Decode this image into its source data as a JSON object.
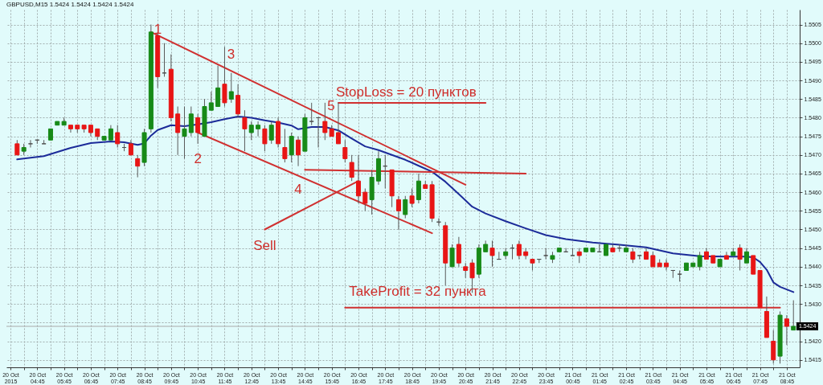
{
  "chart_data": {
    "type": "candlestick",
    "title": "GBPUSD,M15 1.5424 1.5424 1.5424 1.5424",
    "x": [
      "2015-10-20T04:00",
      "2015-10-20T04:15",
      "2015-10-20T04:30",
      "2015-10-20T04:45",
      "2015-10-20T05:00",
      "2015-10-20T05:15",
      "2015-10-20T05:30",
      "2015-10-20T05:45",
      "2015-10-20T06:00",
      "2015-10-20T06:15",
      "2015-10-20T06:30",
      "2015-10-20T06:45",
      "2015-10-20T07:00",
      "2015-10-20T07:15",
      "2015-10-20T07:30",
      "2015-10-20T07:45",
      "2015-10-20T08:00",
      "2015-10-20T08:15",
      "2015-10-20T08:30",
      "2015-10-20T08:45",
      "2015-10-20T09:00",
      "2015-10-20T09:15",
      "2015-10-20T09:30",
      "2015-10-20T09:45",
      "2015-10-20T10:00",
      "2015-10-20T10:15",
      "2015-10-20T10:30",
      "2015-10-20T10:45",
      "2015-10-20T11:00",
      "2015-10-20T11:15",
      "2015-10-20T11:30",
      "2015-10-20T11:45",
      "2015-10-20T12:00",
      "2015-10-20T12:15",
      "2015-10-20T12:30",
      "2015-10-20T12:45",
      "2015-10-20T13:00",
      "2015-10-20T13:15",
      "2015-10-20T13:30",
      "2015-10-20T13:45",
      "2015-10-20T14:00",
      "2015-10-20T14:15",
      "2015-10-20T14:30",
      "2015-10-20T14:45",
      "2015-10-20T15:00",
      "2015-10-20T15:15",
      "2015-10-20T15:30",
      "2015-10-20T15:45",
      "2015-10-20T16:00",
      "2015-10-20T16:15",
      "2015-10-20T16:30",
      "2015-10-20T16:45",
      "2015-10-20T17:00",
      "2015-10-20T17:15",
      "2015-10-20T17:30",
      "2015-10-20T17:45",
      "2015-10-20T18:00",
      "2015-10-20T18:15",
      "2015-10-20T18:30",
      "2015-10-20T18:45",
      "2015-10-20T19:00",
      "2015-10-20T19:15",
      "2015-10-20T19:30",
      "2015-10-20T19:45",
      "2015-10-20T20:00",
      "2015-10-20T20:15",
      "2015-10-20T20:30",
      "2015-10-20T20:45",
      "2015-10-20T21:00",
      "2015-10-20T21:15",
      "2015-10-20T21:30",
      "2015-10-20T21:45",
      "2015-10-20T22:00",
      "2015-10-20T22:15",
      "2015-10-20T22:30",
      "2015-10-20T22:45",
      "2015-10-20T23:00",
      "2015-10-20T23:15",
      "2015-10-20T23:30",
      "2015-10-20T23:45",
      "2015-10-21T00:00",
      "2015-10-21T00:15",
      "2015-10-21T00:30",
      "2015-10-21T00:45",
      "2015-10-21T01:00",
      "2015-10-21T01:15",
      "2015-10-21T01:30",
      "2015-10-21T01:45",
      "2015-10-21T02:00",
      "2015-10-21T02:15",
      "2015-10-21T02:30",
      "2015-10-21T02:45",
      "2015-10-21T03:00",
      "2015-10-21T03:15",
      "2015-10-21T03:30",
      "2015-10-21T03:45",
      "2015-10-21T04:00",
      "2015-10-21T04:15",
      "2015-10-21T04:30",
      "2015-10-21T04:45",
      "2015-10-21T05:00",
      "2015-10-21T05:15",
      "2015-10-21T05:30",
      "2015-10-21T05:45",
      "2015-10-21T06:00",
      "2015-10-21T06:15",
      "2015-10-21T06:30",
      "2015-10-21T06:45",
      "2015-10-21T07:00",
      "2015-10-21T07:15",
      "2015-10-21T07:30",
      "2015-10-21T07:45",
      "2015-10-21T08:00",
      "2015-10-21T08:15",
      "2015-10-21T08:30",
      "2015-10-21T08:45",
      "2015-10-21T09:00"
    ],
    "ohlc": [
      [
        1.5473,
        1.5474,
        1.547,
        1.547
      ],
      [
        1.5471,
        1.5473,
        1.547,
        1.5472
      ],
      [
        1.5473,
        1.5474,
        1.5472,
        1.5473
      ],
      [
        1.5474,
        1.5474,
        1.5473,
        1.5474
      ],
      [
        1.5473,
        1.5474,
        1.5473,
        1.5473
      ],
      [
        1.5474,
        1.5477,
        1.5474,
        1.5477
      ],
      [
        1.5478,
        1.5479,
        1.5478,
        1.5479
      ],
      [
        1.5478,
        1.548,
        1.5478,
        1.5479
      ],
      [
        1.5478,
        1.5478,
        1.5476,
        1.5477
      ],
      [
        1.5478,
        1.5478,
        1.5476,
        1.5477
      ],
      [
        1.5478,
        1.5478,
        1.5476,
        1.5477
      ],
      [
        1.5478,
        1.5478,
        1.5475,
        1.5476
      ],
      [
        1.5477,
        1.5477,
        1.5474,
        1.5475
      ],
      [
        1.5474,
        1.5475,
        1.5474,
        1.5475
      ],
      [
        1.5474,
        1.5478,
        1.5474,
        1.5477
      ],
      [
        1.5476,
        1.5478,
        1.5472,
        1.5473
      ],
      [
        1.5472,
        1.5473,
        1.5471,
        1.5472
      ],
      [
        1.5473,
        1.5474,
        1.547,
        1.547
      ],
      [
        1.5469,
        1.547,
        1.5464,
        1.5467
      ],
      [
        1.5468,
        1.5477,
        1.5467,
        1.5476
      ],
      [
        1.5477,
        1.5505,
        1.5476,
        1.5503
      ],
      [
        1.5502,
        1.5503,
        1.5488,
        1.5491
      ],
      [
        1.5492,
        1.55,
        1.5491,
        1.5492
      ],
      [
        1.5493,
        1.5497,
        1.5479,
        1.548
      ],
      [
        1.5481,
        1.5483,
        1.547,
        1.5476
      ],
      [
        1.5475,
        1.5483,
        1.5469,
        1.5477
      ],
      [
        1.5476,
        1.5483,
        1.5475,
        1.5481
      ],
      [
        1.548,
        1.5481,
        1.5473,
        1.5476
      ],
      [
        1.5475,
        1.5485,
        1.5475,
        1.5483
      ],
      [
        1.5482,
        1.5487,
        1.5482,
        1.5484
      ],
      [
        1.5483,
        1.5494,
        1.5483,
        1.5488
      ],
      [
        1.5489,
        1.5499,
        1.5483,
        1.5484
      ],
      [
        1.5485,
        1.5492,
        1.5484,
        1.5487
      ],
      [
        1.5486,
        1.5489,
        1.548,
        1.5481
      ],
      [
        1.548,
        1.5482,
        1.5471,
        1.5477
      ],
      [
        1.5476,
        1.5479,
        1.5474,
        1.5478
      ],
      [
        1.5477,
        1.5479,
        1.5475,
        1.5478
      ],
      [
        1.5477,
        1.5478,
        1.5471,
        1.5473
      ],
      [
        1.5474,
        1.5479,
        1.5473,
        1.5478
      ],
      [
        1.5479,
        1.548,
        1.5472,
        1.5473
      ],
      [
        1.5472,
        1.5477,
        1.5468,
        1.5469
      ],
      [
        1.547,
        1.5476,
        1.5468,
        1.5475
      ],
      [
        1.5474,
        1.5475,
        1.5467,
        1.547
      ],
      [
        1.5471,
        1.5481,
        1.5471,
        1.548
      ],
      [
        1.5479,
        1.5484,
        1.5478,
        1.5479
      ],
      [
        1.548,
        1.548,
        1.5472,
        1.548
      ],
      [
        1.5479,
        1.5484,
        1.5474,
        1.5476
      ],
      [
        1.5477,
        1.5478,
        1.5475,
        1.5475
      ],
      [
        1.5476,
        1.5484,
        1.5473,
        1.5473
      ],
      [
        1.5472,
        1.5474,
        1.5468,
        1.5469
      ],
      [
        1.5468,
        1.547,
        1.5463,
        1.5464
      ],
      [
        1.5463,
        1.547,
        1.5457,
        1.5459
      ],
      [
        1.546,
        1.5461,
        1.5455,
        1.5457
      ],
      [
        1.5458,
        1.5466,
        1.5454,
        1.5464
      ],
      [
        1.5463,
        1.5471,
        1.5462,
        1.5469
      ],
      [
        1.5467,
        1.547,
        1.5461,
        1.5467
      ],
      [
        1.5466,
        1.5466,
        1.5456,
        1.5459
      ],
      [
        1.5458,
        1.5459,
        1.545,
        1.5455
      ],
      [
        1.5454,
        1.5459,
        1.5453,
        1.5458
      ],
      [
        1.5459,
        1.5461,
        1.5456,
        1.5457
      ],
      [
        1.5458,
        1.5465,
        1.5457,
        1.5463
      ],
      [
        1.5462,
        1.5463,
        1.5461,
        1.5461
      ],
      [
        1.5462,
        1.5463,
        1.5452,
        1.5453
      ],
      [
        1.5452,
        1.5453,
        1.5451,
        1.5452
      ],
      [
        1.5451,
        1.5452,
        1.5435,
        1.5441
      ],
      [
        1.544,
        1.5446,
        1.544,
        1.5445
      ],
      [
        1.5446,
        1.5448,
        1.544,
        1.5441
      ],
      [
        1.544,
        1.5441,
        1.5437,
        1.5439
      ],
      [
        1.5441,
        1.5442,
        1.5433,
        1.5437
      ],
      [
        1.5438,
        1.5446,
        1.5437,
        1.5445
      ],
      [
        1.5444,
        1.5447,
        1.5444,
        1.5446
      ],
      [
        1.5445,
        1.5447,
        1.544,
        1.5443
      ],
      [
        1.5442,
        1.5444,
        1.5442,
        1.5442
      ],
      [
        1.5443,
        1.5445,
        1.5442,
        1.5444
      ],
      [
        1.5445,
        1.5446,
        1.5442,
        1.5445
      ],
      [
        1.5446,
        1.5447,
        1.5442,
        1.5443
      ],
      [
        1.5444,
        1.5445,
        1.5442,
        1.5443
      ],
      [
        1.5442,
        1.5442,
        1.5439,
        1.5441
      ],
      [
        1.5442,
        1.5442,
        1.5441,
        1.5442
      ],
      [
        1.5443,
        1.5445,
        1.5442,
        1.5443
      ],
      [
        1.5442,
        1.5444,
        1.5441,
        1.5443
      ],
      [
        1.5444,
        1.5445,
        1.5444,
        1.5445
      ],
      [
        1.5444,
        1.5445,
        1.5444,
        1.5444
      ],
      [
        1.5443,
        1.5445,
        1.5443,
        1.5443
      ],
      [
        1.5444,
        1.5445,
        1.5441,
        1.5443
      ],
      [
        1.5444,
        1.5445,
        1.5444,
        1.5445
      ],
      [
        1.5444,
        1.5445,
        1.5444,
        1.5445
      ],
      [
        1.5444,
        1.5446,
        1.5444,
        1.5444
      ],
      [
        1.5443,
        1.5446,
        1.5443,
        1.5446
      ],
      [
        1.5445,
        1.5446,
        1.5444,
        1.5444
      ],
      [
        1.5445,
        1.5446,
        1.5444,
        1.5445
      ],
      [
        1.5444,
        1.5446,
        1.5444,
        1.5445
      ],
      [
        1.5444,
        1.5445,
        1.5441,
        1.5442
      ],
      [
        1.5443,
        1.5443,
        1.5442,
        1.5443
      ],
      [
        1.5444,
        1.5445,
        1.5442,
        1.5442
      ],
      [
        1.5443,
        1.5444,
        1.544,
        1.544
      ],
      [
        1.5441,
        1.5442,
        1.544,
        1.544
      ],
      [
        1.5441,
        1.5442,
        1.5439,
        1.544
      ],
      [
        1.5439,
        1.5439,
        1.5437,
        1.5439
      ],
      [
        1.5438,
        1.5439,
        1.5436,
        1.5438
      ],
      [
        1.5439,
        1.5441,
        1.5439,
        1.5441
      ],
      [
        1.544,
        1.5441,
        1.544,
        1.5441
      ],
      [
        1.544,
        1.5444,
        1.5439,
        1.5443
      ],
      [
        1.5444,
        1.5445,
        1.5442,
        1.5442
      ],
      [
        1.5443,
        1.5443,
        1.5441,
        1.5441
      ],
      [
        1.544,
        1.5442,
        1.544,
        1.5442
      ],
      [
        1.5443,
        1.5444,
        1.5442,
        1.5442
      ],
      [
        1.5443,
        1.5445,
        1.5443,
        1.5444
      ],
      [
        1.5445,
        1.5446,
        1.5439,
        1.5442
      ],
      [
        1.5441,
        1.5445,
        1.5441,
        1.5444
      ],
      [
        1.5443,
        1.5443,
        1.5438,
        1.5438
      ],
      [
        1.5439,
        1.5439,
        1.5429,
        1.5429
      ],
      [
        1.5428,
        1.5432,
        1.5421,
        1.5421
      ],
      [
        1.542,
        1.5423,
        1.5414,
        1.5415
      ],
      [
        1.5416,
        1.5428,
        1.5414,
        1.5427
      ],
      [
        1.5426,
        1.5427,
        1.5419,
        1.5424
      ],
      [
        1.5423,
        1.5431,
        1.5423,
        1.5424
      ]
    ],
    "colors": [
      "#e81515",
      "#178a17",
      "#4d4d4d",
      "#4d4d4d",
      "#4d4d4d",
      "#178a17",
      "#178a17",
      "#178a17",
      "#e81515",
      "#e81515",
      "#e81515",
      "#e81515",
      "#e81515",
      "#178a17",
      "#178a17",
      "#e81515",
      "#4d4d4d",
      "#e81515",
      "#e81515",
      "#178a17",
      "#178a17",
      "#e81515",
      "#4d4d4d",
      "#e81515",
      "#e81515",
      "#178a17",
      "#178a17",
      "#e81515",
      "#178a17",
      "#178a17",
      "#178a17",
      "#e81515",
      "#178a17",
      "#e81515",
      "#e81515",
      "#178a17",
      "#178a17",
      "#e81515",
      "#178a17",
      "#e81515",
      "#e81515",
      "#178a17",
      "#e81515",
      "#178a17",
      "#4d4d4d",
      "#4d4d4d",
      "#e81515",
      "#e81515",
      "#e81515",
      "#e81515",
      "#e81515",
      "#e81515",
      "#e81515",
      "#178a17",
      "#178a17",
      "#4d4d4d",
      "#e81515",
      "#e81515",
      "#178a17",
      "#e81515",
      "#178a17",
      "#e81515",
      "#e81515",
      "#4d4d4d",
      "#e81515",
      "#178a17",
      "#e81515",
      "#e81515",
      "#e81515",
      "#178a17",
      "#178a17",
      "#e81515",
      "#4d4d4d",
      "#178a17",
      "#4d4d4d",
      "#e81515",
      "#e81515",
      "#e81515",
      "#4d4d4d",
      "#4d4d4d",
      "#178a17",
      "#178a17",
      "#4d4d4d",
      "#4d4d4d",
      "#e81515",
      "#178a17",
      "#178a17",
      "#4d4d4d",
      "#178a17",
      "#e81515",
      "#4d4d4d",
      "#178a17",
      "#e81515",
      "#4d4d4d",
      "#e81515",
      "#e81515",
      "#e81515",
      "#e81515",
      "#4d4d4d",
      "#4d4d4d",
      "#178a17",
      "#178a17",
      "#178a17",
      "#e81515",
      "#e81515",
      "#178a17",
      "#e81515",
      "#178a17",
      "#e81515",
      "#178a17",
      "#e81515",
      "#e81515",
      "#e81515",
      "#e81515",
      "#178a17",
      "#e81515",
      "#178a17"
    ],
    "series": [
      {
        "type": "line",
        "color": "#1c2b99",
        "x": [
          "2015-10-20T04:00",
          "2015-10-20T05:00",
          "2015-10-20T06:00",
          "2015-10-20T06:45",
          "2015-10-20T07:30",
          "2015-10-20T08:00",
          "2015-10-20T08:30",
          "2015-10-20T08:45",
          "2015-10-20T09:00",
          "2015-10-20T09:15",
          "2015-10-20T09:45",
          "2015-10-20T10:15",
          "2015-10-20T10:45",
          "2015-10-20T11:15",
          "2015-10-20T11:45",
          "2015-10-20T12:15",
          "2015-10-20T12:45",
          "2015-10-20T13:15",
          "2015-10-20T13:45",
          "2015-10-20T14:15",
          "2015-10-20T14:30",
          "2015-10-20T15:00",
          "2015-10-20T15:30",
          "2015-10-20T16:00",
          "2015-10-20T16:30",
          "2015-10-20T17:00",
          "2015-10-20T17:30",
          "2015-10-20T18:00",
          "2015-10-20T18:30",
          "2015-10-20T19:00",
          "2015-10-20T19:30",
          "2015-10-20T20:00",
          "2015-10-20T20:30",
          "2015-10-20T21:00",
          "2015-10-20T21:30",
          "2015-10-20T22:15",
          "2015-10-20T23:00",
          "2015-10-20T23:45",
          "2015-10-21T00:30",
          "2015-10-21T01:30",
          "2015-10-21T02:30",
          "2015-10-21T03:30",
          "2015-10-21T04:30",
          "2015-10-21T05:30",
          "2015-10-21T06:30",
          "2015-10-21T07:15",
          "2015-10-21T07:30",
          "2015-10-21T07:45",
          "2015-10-21T08:00",
          "2015-10-21T08:15",
          "2015-10-21T08:30",
          "2015-10-21T09:00"
        ],
        "values": [
          1.54688,
          1.54697,
          1.54719,
          1.54732,
          1.54736,
          1.54734,
          1.54727,
          1.54731,
          1.54752,
          1.54767,
          1.5478,
          1.54777,
          1.54782,
          1.54788,
          1.54796,
          1.54803,
          1.548,
          1.54793,
          1.54787,
          1.54779,
          1.54769,
          1.54775,
          1.54775,
          1.54766,
          1.54744,
          1.54723,
          1.54713,
          1.547,
          1.54687,
          1.54671,
          1.54655,
          1.54628,
          1.54595,
          1.54561,
          1.54543,
          1.54522,
          1.54503,
          1.54485,
          1.54474,
          1.54465,
          1.54459,
          1.54452,
          1.54436,
          1.54428,
          1.54427,
          1.54427,
          1.54425,
          1.54413,
          1.54392,
          1.54358,
          1.54346,
          1.54332
        ]
      },
      {
        "type": "line",
        "color": "#d03030",
        "x": [
          "2015-10-20T09:00",
          "2015-10-20T20:45"
        ],
        "values": [
          1.5503,
          1.5462
        ]
      },
      {
        "type": "line",
        "color": "#d03030",
        "x": [
          "2015-10-20T10:45",
          "2015-10-20T19:30"
        ],
        "values": [
          1.5476,
          1.5449
        ]
      },
      {
        "type": "line",
        "color": "#d03030",
        "x": [
          "2015-10-20T14:45",
          "2015-10-20T23:00"
        ],
        "values": [
          1.5466,
          1.5465
        ]
      },
      {
        "type": "line",
        "color": "#d03030",
        "x": [
          "2015-10-20T13:15",
          "2015-10-20T16:45"
        ],
        "values": [
          1.545,
          1.5463
        ]
      },
      {
        "type": "line",
        "color": "#d03030",
        "x": [
          "2015-10-20T16:00",
          "2015-10-20T21:30"
        ],
        "values": [
          1.5484,
          1.5484
        ]
      },
      {
        "type": "line",
        "color": "#d03030",
        "x": [
          "2015-10-20T16:15",
          "2015-10-21T08:30"
        ],
        "values": [
          1.5429,
          1.5429
        ]
      }
    ],
    "xlim": [
      "2015-10-20T03:45",
      "2015-10-21T09:05"
    ],
    "xticks": [
      {
        "value": "2015-10-20T03:45",
        "label": "20 Oct 2015"
      },
      {
        "value": "2015-10-20T04:15",
        "label": null
      },
      {
        "value": "2015-10-20T04:45",
        "label": "20 Oct 04:45"
      },
      {
        "value": "2015-10-20T05:15",
        "label": null
      },
      {
        "value": "2015-10-20T05:45",
        "label": "20 Oct 05:45"
      },
      {
        "value": "2015-10-20T06:15",
        "label": null
      },
      {
        "value": "2015-10-20T06:45",
        "label": "20 Oct 06:45"
      },
      {
        "value": "2015-10-20T07:15",
        "label": null
      },
      {
        "value": "2015-10-20T07:45",
        "label": "20 Oct 07:45"
      },
      {
        "value": "2015-10-20T08:15",
        "label": null
      },
      {
        "value": "2015-10-20T08:45",
        "label": "20 Oct 08:45"
      },
      {
        "value": "2015-10-20T09:15",
        "label": null
      },
      {
        "value": "2015-10-20T09:45",
        "label": "20 Oct 09:45"
      },
      {
        "value": "2015-10-20T10:15",
        "label": null
      },
      {
        "value": "2015-10-20T10:45",
        "label": "20 Oct 10:45"
      },
      {
        "value": "2015-10-20T11:15",
        "label": null
      },
      {
        "value": "2015-10-20T11:45",
        "label": "20 Oct 11:45"
      },
      {
        "value": "2015-10-20T12:15",
        "label": null
      },
      {
        "value": "2015-10-20T12:45",
        "label": "20 Oct 12:45"
      },
      {
        "value": "2015-10-20T13:15",
        "label": null
      },
      {
        "value": "2015-10-20T13:45",
        "label": "20 Oct 13:45"
      },
      {
        "value": "2015-10-20T14:15",
        "label": null
      },
      {
        "value": "2015-10-20T14:45",
        "label": "20 Oct 14:45"
      },
      {
        "value": "2015-10-20T15:15",
        "label": null
      },
      {
        "value": "2015-10-20T15:45",
        "label": "20 Oct 15:45"
      },
      {
        "value": "2015-10-20T16:15",
        "label": null
      },
      {
        "value": "2015-10-20T16:45",
        "label": "20 Oct 16:45"
      },
      {
        "value": "2015-10-20T17:15",
        "label": null
      },
      {
        "value": "2015-10-20T17:45",
        "label": "20 Oct 17:45"
      },
      {
        "value": "2015-10-20T18:15",
        "label": null
      },
      {
        "value": "2015-10-20T18:45",
        "label": "20 Oct 18:45"
      },
      {
        "value": "2015-10-20T19:15",
        "label": null
      },
      {
        "value": "2015-10-20T19:45",
        "label": "20 Oct 19:45"
      },
      {
        "value": "2015-10-20T20:15",
        "label": null
      },
      {
        "value": "2015-10-20T20:45",
        "label": "20 Oct 20:45"
      },
      {
        "value": "2015-10-20T21:15",
        "label": null
      },
      {
        "value": "2015-10-20T21:45",
        "label": "20 Oct 21:45"
      },
      {
        "value": "2015-10-20T22:15",
        "label": null
      },
      {
        "value": "2015-10-20T22:45",
        "label": "20 Oct 22:45"
      },
      {
        "value": "2015-10-20T23:15",
        "label": null
      },
      {
        "value": "2015-10-20T23:45",
        "label": "20 Oct 23:45"
      },
      {
        "value": "2015-10-21T00:15",
        "label": null
      },
      {
        "value": "2015-10-21T00:45",
        "label": "21 Oct 00:45"
      },
      {
        "value": "2015-10-21T01:15",
        "label": null
      },
      {
        "value": "2015-10-21T01:45",
        "label": "21 Oct 01:45"
      },
      {
        "value": "2015-10-21T02:15",
        "label": null
      },
      {
        "value": "2015-10-21T02:45",
        "label": "21 Oct 02:45"
      },
      {
        "value": "2015-10-21T03:15",
        "label": null
      },
      {
        "value": "2015-10-21T03:45",
        "label": "21 Oct 03:45"
      },
      {
        "value": "2015-10-21T04:15",
        "label": null
      },
      {
        "value": "2015-10-21T04:45",
        "label": "21 Oct 04:45"
      },
      {
        "value": "2015-10-21T05:15",
        "label": null
      },
      {
        "value": "2015-10-21T05:45",
        "label": "21 Oct 05:45"
      },
      {
        "value": "2015-10-21T06:15",
        "label": null
      },
      {
        "value": "2015-10-21T06:45",
        "label": "21 Oct 06:45"
      },
      {
        "value": "2015-10-21T07:15",
        "label": null
      },
      {
        "value": "2015-10-21T07:45",
        "label": "21 Oct 07:45"
      },
      {
        "value": "2015-10-21T08:15",
        "label": null
      },
      {
        "value": "2015-10-21T08:45",
        "label": "21 Oct 08:45"
      }
    ],
    "ylim": [
      1.5413,
      1.5509
    ],
    "yticks": [
      1.5415,
      {
        "value": 1.542,
        "label": "1.5420"
      },
      {
        "value": 1.5425,
        "label": null
      },
      {
        "value": 1.543,
        "label": "1.5430"
      },
      1.5435,
      {
        "value": 1.544,
        "label": "1.5440"
      },
      1.5445,
      {
        "value": 1.545,
        "label": "1.5450"
      },
      1.5455,
      {
        "value": 1.546,
        "label": "1.5460"
      },
      1.5465,
      {
        "value": 1.547,
        "label": "1.5470"
      },
      1.5475,
      {
        "value": 1.548,
        "label": "1.5480"
      },
      1.5485,
      {
        "value": 1.549,
        "label": "1.5490"
      },
      1.5495,
      {
        "value": 1.55,
        "label": "1.5500"
      },
      1.5505
    ],
    "ref_lines": [
      {
        "axis": "y",
        "value": 1.5424,
        "label": "1.5424",
        "color": "#a9a9a9"
      }
    ],
    "annotations": [
      {
        "text": "1",
        "x": "2015-10-20T09:00",
        "y": 1.5505
      },
      {
        "text": "2",
        "x": "2015-10-20T10:45",
        "y": 1.5473
      },
      {
        "text": "3",
        "x": "2015-10-20T11:45",
        "y": 1.5499
      },
      {
        "text": "4",
        "x": "2015-10-20T14:30",
        "y": 1.5464
      },
      {
        "text": "5",
        "x": "2015-10-20T16:00",
        "y": 1.5484
      },
      {
        "text": "Sell",
        "x": "2015-10-20T13:15",
        "y": 1.545
      },
      {
        "text": "StopLoss = 20 пунктов",
        "x": "2015-10-20T16:00",
        "y": 1.5484
      },
      {
        "text": "TakeProfit = 32 пункта",
        "x": "2015-10-20T16:15",
        "y": 1.5429
      }
    ],
    "grid": true
  }
}
